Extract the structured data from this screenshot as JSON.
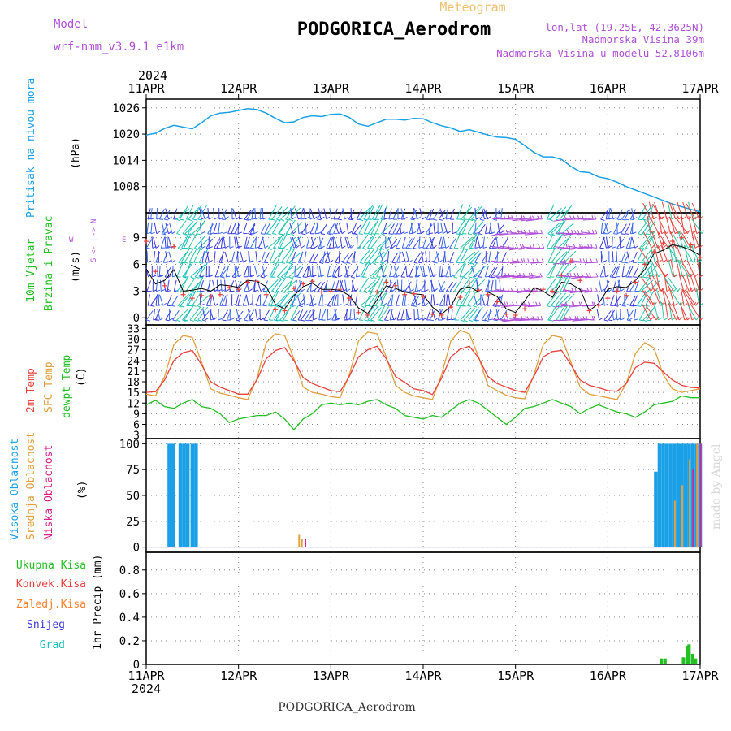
{
  "header": {
    "model_label": "Model",
    "model_name": "wrf-nmm_v3.9.1 e1km",
    "product": "Meteogram",
    "station": "PODGORICA_Aerodrom",
    "coords": "lon,lat (19.25E, 42.3625N)",
    "elev": "Nadmorska Visina 39m",
    "elev_model": "Nadmorska Visina u modelu 52.8106m"
  },
  "footer": {
    "station": "PODGORICA_Aerodrom"
  },
  "credit": "made by Angel",
  "time_axis": {
    "year": "2024",
    "days": [
      "11APR",
      "12APR",
      "13APR",
      "14APR",
      "15APR",
      "16APR",
      "17APR"
    ]
  },
  "colors": {
    "pressure": "#1aa0e6",
    "temp2m": "#e8413c",
    "sfc": "#e0a040",
    "dewpt": "#22c022",
    "wind_speed": "#000000",
    "gust": "#e8413c",
    "cloud_high": "#1aa0e6",
    "cloud_mid": "#e0a040",
    "cloud_low": "#d8228a",
    "precip_total": "#22c022",
    "precip_conv": "#e8413c",
    "precip_ice": "#ff7f2a",
    "precip_snow": "#3a3adc",
    "precip_grad": "#19c0c0",
    "model_text": "#b050d8",
    "wind_label": "#22c022",
    "compass": "#b050d8"
  },
  "panels": {
    "pressure": {
      "label1": "Pritisak na nivou mora",
      "unit": "(hPa)"
    },
    "wind": {
      "label1": "10m Vjetar",
      "label2": "Brzina i Pravac",
      "unit": "(m/s)",
      "compass_n": "N",
      "compass_s": "S",
      "compass_e": "E",
      "compass_w": "W"
    },
    "temp": {
      "label1": "2m Temp",
      "label2": "SFC Temp",
      "label3": "dewpt Temp",
      "unit": "(C)"
    },
    "cloud": {
      "label1": "Visoka Oblacnost",
      "label2": "Srednja Oblacnost",
      "label3": "Niska Oblacnost",
      "unit": "(%)"
    },
    "precip": {
      "legend": [
        "Ukupna Kisa",
        "Konvek.Kisa",
        "Zaledj.Kisa",
        "Snijeg",
        "Grad"
      ],
      "unit": "1hr Precip (mm)"
    }
  },
  "chart_data": [
    {
      "type": "line",
      "panel": "pressure",
      "x_unit": "day offset from 11APR 00Z",
      "ylabel": "(hPa)",
      "ylim": [
        1002,
        1028
      ],
      "yticks": [
        1008,
        1014,
        1020,
        1026
      ],
      "grid": true,
      "series": [
        {
          "name": "Pritisak na nivou mora",
          "x": [
            0,
            0.1,
            0.2,
            0.3,
            0.4,
            0.5,
            0.6,
            0.7,
            0.8,
            0.9,
            1.0,
            1.1,
            1.2,
            1.3,
            1.4,
            1.5,
            1.6,
            1.7,
            1.8,
            1.9,
            2.0,
            2.1,
            2.2,
            2.3,
            2.4,
            2.5,
            2.6,
            2.7,
            2.8,
            2.9,
            3.0,
            3.1,
            3.2,
            3.3,
            3.4,
            3.5,
            3.6,
            3.7,
            3.8,
            3.9,
            4.0,
            4.1,
            4.2,
            4.3,
            4.4,
            4.5,
            4.6,
            4.7,
            4.8,
            4.9,
            5.0,
            5.1,
            5.2,
            5.3,
            5.4,
            5.5,
            5.6,
            5.7,
            5.8,
            5.9,
            6.0
          ],
          "values": [
            1019.8,
            1020.2,
            1021.3,
            1022.0,
            1021.6,
            1021.2,
            1022.6,
            1024.2,
            1024.8,
            1025.0,
            1025.4,
            1025.8,
            1025.6,
            1024.8,
            1023.6,
            1022.6,
            1022.8,
            1023.8,
            1024.2,
            1024.0,
            1024.5,
            1024.6,
            1023.8,
            1022.3,
            1021.8,
            1022.6,
            1023.4,
            1023.4,
            1023.2,
            1023.6,
            1023.5,
            1022.6,
            1021.9,
            1021.4,
            1020.6,
            1021.0,
            1020.4,
            1019.8,
            1019.3,
            1019.2,
            1018.8,
            1017.4,
            1015.8,
            1014.8,
            1014.8,
            1014.2,
            1012.6,
            1011.4,
            1011.2,
            1010.2,
            1009.8,
            1009.0,
            1008.0,
            1007.2,
            1006.4,
            1005.6,
            1004.8,
            1004.0,
            1003.4,
            1002.8,
            1002.2
          ]
        }
      ]
    },
    {
      "type": "line",
      "panel": "wind",
      "x_unit": "day offset from 11APR 00Z",
      "ylabel": "(m/s)",
      "ylim": [
        -0.8,
        11.8
      ],
      "yticks": [
        0,
        3,
        6,
        9
      ],
      "grid": true,
      "series": [
        {
          "name": "wind speed",
          "x": [
            0,
            0.1,
            0.2,
            0.3,
            0.4,
            0.5,
            0.6,
            0.7,
            0.8,
            0.9,
            1.0,
            1.1,
            1.2,
            1.3,
            1.4,
            1.5,
            1.6,
            1.7,
            1.8,
            1.9,
            2.0,
            2.1,
            2.2,
            2.3,
            2.4,
            2.5,
            2.6,
            2.7,
            2.8,
            2.9,
            3.0,
            3.1,
            3.2,
            3.3,
            3.4,
            3.5,
            3.6,
            3.7,
            3.8,
            3.9,
            4.0,
            4.1,
            4.2,
            4.3,
            4.4,
            4.5,
            4.6,
            4.7,
            4.8,
            4.9,
            5.0,
            5.1,
            5.2,
            5.3,
            5.4,
            5.5,
            5.6,
            5.7,
            5.8,
            5.9,
            6.0
          ],
          "values": [
            5.5,
            3.8,
            4.2,
            5.4,
            3.0,
            3.1,
            3.3,
            3.0,
            3.7,
            3.6,
            3.4,
            4.2,
            4.1,
            3.5,
            1.5,
            1.0,
            2.5,
            3.5,
            3.9,
            3.2,
            3.2,
            3.1,
            2.5,
            1.1,
            0.5,
            2.0,
            3.6,
            3.3,
            2.9,
            2.7,
            2.6,
            1.2,
            0.4,
            1.3,
            3.2,
            3.5,
            2.9,
            2.9,
            2.4,
            1.0,
            0.6,
            1.9,
            3.4,
            3.0,
            2.3,
            4.0,
            3.8,
            3.2,
            0.8,
            1.6,
            3.2,
            3.5,
            3.4,
            4.2,
            5.4,
            7.2,
            7.6,
            8.2,
            8.0,
            7.6,
            7.0
          ]
        },
        {
          "name": "gust",
          "x": [
            0,
            0.1,
            0.2,
            0.3,
            0.4,
            0.5,
            0.6,
            0.7,
            0.8,
            0.9,
            1.0,
            1.1,
            1.2,
            1.3,
            1.4,
            1.5,
            1.6,
            1.7,
            1.8,
            1.9,
            2.0,
            2.1,
            2.2,
            2.3,
            2.4,
            2.5,
            2.6,
            2.7,
            2.8,
            2.9,
            3.0,
            3.1,
            3.2,
            3.3,
            3.4,
            3.5,
            3.6,
            3.7,
            3.8,
            3.9,
            4.0,
            4.1,
            4.2,
            4.3,
            4.4,
            4.5,
            4.6,
            4.7,
            4.8,
            4.9,
            5.0,
            5.1,
            5.2,
            5.3,
            5.4,
            5.5,
            5.6,
            5.7,
            5.8,
            5.9,
            6.0
          ],
          "values": [
            8.6,
            5.2,
            3.6,
            8.0,
            2.6,
            2.2,
            2.5,
            2.4,
            2.6,
            3.4,
            3.2,
            4.0,
            4.1,
            2.6,
            0.9,
            0.8,
            3.3,
            3.8,
            4.1,
            2.9,
            3.0,
            3.2,
            2.2,
            0.6,
            0.3,
            2.9,
            4.0,
            3.6,
            2.6,
            2.7,
            2.4,
            0.4,
            0.3,
            1.2,
            2.3,
            3.9,
            3.1,
            2.6,
            1.8,
            0.4,
            0.3,
            1.0,
            2.9,
            3.2,
            3.0,
            4.8,
            6.4,
            4.2,
            0.8,
            1.4,
            2.2,
            3.0,
            2.5,
            4.0,
            6.0,
            7.4,
            8.4,
            8.6,
            9.0,
            8.2,
            6.8
          ]
        }
      ]
    },
    {
      "type": "line",
      "panel": "temp",
      "x_unit": "day offset from 11APR 00Z",
      "ylabel": "(C)",
      "ylim": [
        2,
        34
      ],
      "yticks": [
        3,
        6,
        9,
        12,
        15,
        18,
        21,
        24,
        27,
        30,
        33
      ],
      "grid": true,
      "series": [
        {
          "name": "2m Temp",
          "x": [
            0,
            0.1,
            0.2,
            0.3,
            0.4,
            0.5,
            0.6,
            0.7,
            0.8,
            0.9,
            1.0,
            1.1,
            1.2,
            1.3,
            1.4,
            1.5,
            1.6,
            1.7,
            1.8,
            1.9,
            2.0,
            2.1,
            2.2,
            2.3,
            2.4,
            2.5,
            2.6,
            2.7,
            2.8,
            2.9,
            3.0,
            3.1,
            3.2,
            3.3,
            3.4,
            3.5,
            3.6,
            3.7,
            3.8,
            3.9,
            4.0,
            4.1,
            4.2,
            4.3,
            4.4,
            4.5,
            4.6,
            4.7,
            4.8,
            4.9,
            5.0,
            5.1,
            5.2,
            5.3,
            5.4,
            5.5,
            5.6,
            5.7,
            5.8,
            5.9,
            6.0
          ],
          "values": [
            15.0,
            15.2,
            18.5,
            24.0,
            26.2,
            26.8,
            22.8,
            18.0,
            16.5,
            15.5,
            14.5,
            14.5,
            18.5,
            24.5,
            26.8,
            27.6,
            24.0,
            19.2,
            17.5,
            16.5,
            15.5,
            15.2,
            19.5,
            25.0,
            27.0,
            28.0,
            24.5,
            19.5,
            17.8,
            16.0,
            15.5,
            14.4,
            19.0,
            25.0,
            27.2,
            28.0,
            24.8,
            19.5,
            17.5,
            16.5,
            15.5,
            15.0,
            19.5,
            25.0,
            26.5,
            26.8,
            22.8,
            18.5,
            17.0,
            16.3,
            15.5,
            15.3,
            17.5,
            22.0,
            23.5,
            23.2,
            20.8,
            18.5,
            17.0,
            16.4,
            16.2
          ]
        },
        {
          "name": "SFC Temp",
          "x": [
            0,
            0.1,
            0.2,
            0.3,
            0.4,
            0.5,
            0.6,
            0.7,
            0.8,
            0.9,
            1.0,
            1.1,
            1.2,
            1.3,
            1.4,
            1.5,
            1.6,
            1.7,
            1.8,
            1.9,
            2.0,
            2.1,
            2.2,
            2.3,
            2.4,
            2.5,
            2.6,
            2.7,
            2.8,
            2.9,
            3.0,
            3.1,
            3.2,
            3.3,
            3.4,
            3.5,
            3.6,
            3.7,
            3.8,
            3.9,
            4.0,
            4.1,
            4.2,
            4.3,
            4.4,
            4.5,
            4.6,
            4.7,
            4.8,
            4.9,
            5.0,
            5.1,
            5.2,
            5.3,
            5.4,
            5.5,
            5.6,
            5.7,
            5.8,
            5.9,
            6.0
          ],
          "values": [
            14.5,
            14.0,
            19.5,
            28.5,
            31.0,
            30.5,
            23.5,
            16.0,
            14.8,
            14.2,
            13.5,
            13.0,
            19.0,
            29.0,
            31.5,
            31.0,
            24.5,
            16.5,
            15.0,
            14.5,
            13.8,
            13.5,
            20.0,
            29.5,
            32.0,
            31.5,
            25.0,
            17.0,
            15.0,
            14.0,
            13.5,
            13.0,
            20.0,
            29.5,
            32.5,
            31.5,
            25.0,
            17.0,
            15.5,
            14.2,
            13.5,
            13.2,
            20.0,
            28.5,
            31.0,
            30.5,
            23.5,
            16.5,
            14.5,
            14.0,
            13.5,
            13.0,
            17.5,
            26.0,
            29.0,
            27.5,
            20.0,
            16.0,
            15.0,
            15.5,
            16.0
          ]
        },
        {
          "name": "dewpt Temp",
          "x": [
            0,
            0.1,
            0.2,
            0.3,
            0.4,
            0.5,
            0.6,
            0.7,
            0.8,
            0.9,
            1.0,
            1.1,
            1.2,
            1.3,
            1.4,
            1.5,
            1.6,
            1.7,
            1.8,
            1.9,
            2.0,
            2.1,
            2.2,
            2.3,
            2.4,
            2.5,
            2.6,
            2.7,
            2.8,
            2.9,
            3.0,
            3.1,
            3.2,
            3.3,
            3.4,
            3.5,
            3.6,
            3.7,
            3.8,
            3.9,
            4.0,
            4.1,
            4.2,
            4.3,
            4.4,
            4.5,
            4.6,
            4.7,
            4.8,
            4.9,
            5.0,
            5.1,
            5.2,
            5.3,
            5.4,
            5.5,
            5.6,
            5.7,
            5.8,
            5.9,
            6.0
          ],
          "values": [
            11.5,
            12.8,
            11.0,
            10.5,
            12.0,
            13.0,
            11.0,
            10.5,
            9.0,
            6.5,
            7.5,
            8.0,
            8.5,
            8.5,
            9.5,
            7.5,
            4.5,
            7.5,
            9.0,
            11.5,
            12.0,
            11.5,
            12.0,
            11.5,
            12.5,
            13.0,
            11.5,
            10.5,
            8.5,
            8.0,
            7.5,
            8.5,
            8.0,
            10.0,
            12.0,
            13.0,
            12.0,
            10.0,
            8.0,
            6.0,
            8.0,
            10.5,
            11.0,
            12.0,
            13.0,
            12.0,
            11.0,
            9.0,
            10.5,
            11.5,
            10.5,
            9.5,
            9.0,
            8.0,
            9.5,
            11.5,
            12.0,
            12.5,
            14.0,
            13.5,
            13.5
          ]
        }
      ]
    },
    {
      "type": "bar",
      "panel": "cloud",
      "x_unit": "day offset from 11APR 00Z",
      "ylabel": "(%)",
      "ylim": [
        -5,
        105
      ],
      "yticks": [
        0,
        25,
        50,
        75,
        100
      ],
      "grid": true,
      "series": [
        {
          "name": "Visoka Oblacnost",
          "x": [
            0.25,
            0.29,
            0.37,
            0.41,
            0.45,
            0.5,
            0.54,
            5.52,
            5.56,
            5.6,
            5.64,
            5.68,
            5.72,
            5.76,
            5.8,
            5.84,
            5.88,
            5.92,
            5.96,
            6.0
          ],
          "values": [
            100,
            100,
            100,
            100,
            100,
            100,
            100,
            73,
            100,
            100,
            100,
            100,
            100,
            100,
            100,
            100,
            100,
            100,
            100,
            100
          ]
        },
        {
          "name": "Srednja Oblacnost",
          "x": [
            1.63,
            1.66,
            5.7,
            5.78,
            5.86,
            5.94
          ],
          "values": [
            12,
            8,
            45,
            60,
            85,
            100
          ]
        },
        {
          "name": "Niska Oblacnost",
          "x": [
            1.68,
            5.88,
            5.96
          ],
          "values": [
            8,
            75,
            100
          ]
        }
      ]
    },
    {
      "type": "bar",
      "panel": "precip",
      "x_unit": "day offset from 11APR 00Z",
      "ylabel": "1hr Precip (mm)",
      "ylim": [
        0,
        0.95
      ],
      "yticks": [
        0,
        0.2,
        0.4,
        0.6,
        0.8
      ],
      "grid": true,
      "series": [
        {
          "name": "Ukupna Kisa",
          "x": [
            5.58,
            5.62,
            5.82,
            5.86,
            5.88,
            5.92,
            5.95
          ],
          "values": [
            0.05,
            0.05,
            0.06,
            0.16,
            0.17,
            0.09,
            0.05
          ]
        }
      ]
    }
  ]
}
